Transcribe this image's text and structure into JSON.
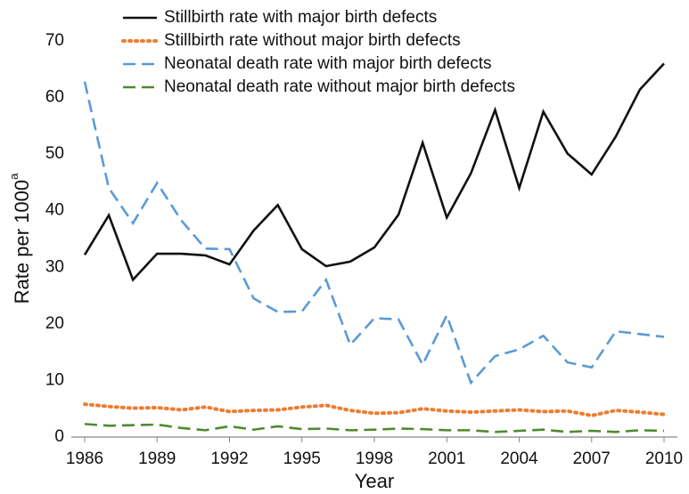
{
  "chart_data": {
    "type": "line",
    "xlabel": "Year",
    "ylabel": "Rate per 1000",
    "ylabel_superscript": "a",
    "x": [
      1986,
      1987,
      1988,
      1989,
      1990,
      1991,
      1992,
      1993,
      1994,
      1995,
      1996,
      1997,
      1998,
      1999,
      2000,
      2001,
      2002,
      2003,
      2004,
      2005,
      2006,
      2007,
      2008,
      2009,
      2010
    ],
    "xlim": [
      1986,
      2010
    ],
    "xticks": [
      1986,
      1989,
      1992,
      1995,
      1998,
      2001,
      2004,
      2007,
      2010
    ],
    "ylim": [
      0,
      70
    ],
    "yticks": [
      0,
      10,
      20,
      30,
      40,
      50,
      60,
      70
    ],
    "grid": false,
    "legend": "top",
    "series": [
      {
        "name": "Stillbirth rate with major birth defects",
        "color": "#111111",
        "style": "solid",
        "values": [
          32.2,
          39.2,
          27.8,
          32.4,
          32.4,
          32.1,
          30.5,
          36.5,
          41,
          33.2,
          30.2,
          31,
          33.5,
          39.3,
          52,
          38.8,
          46.6,
          57.8,
          44,
          57.5,
          50.1,
          46.4,
          53.1,
          61.4,
          66
        ]
      },
      {
        "name": "Stillbirth rate without major birth defects",
        "color": "#ed7d31",
        "style": "dotted",
        "values": [
          5.8,
          5.4,
          5.1,
          5.2,
          4.8,
          5.3,
          4.5,
          4.7,
          4.8,
          5.3,
          5.6,
          4.7,
          4.2,
          4.3,
          5,
          4.6,
          4.4,
          4.6,
          4.8,
          4.5,
          4.6,
          3.8,
          4.7,
          4.4,
          4
        ]
      },
      {
        "name": "Neonatal death rate with major birth defects",
        "color": "#5b9bd5",
        "style": "dashed",
        "values": [
          62.8,
          44,
          37.8,
          44.9,
          38.3,
          33.3,
          33.2,
          24.5,
          22.1,
          22.2,
          27.8,
          16.3,
          21,
          20.8,
          12.8,
          21.5,
          9.6,
          14.3,
          15.5,
          17.9,
          13.2,
          12.3,
          18.7,
          18.2,
          17.7
        ]
      },
      {
        "name": "Neonatal death rate without major birth defects",
        "color": "#4e8a2e",
        "style": "dashed",
        "values": [
          2.3,
          2,
          2.1,
          2.2,
          1.6,
          1.2,
          1.9,
          1.3,
          1.9,
          1.4,
          1.5,
          1.2,
          1.3,
          1.5,
          1.4,
          1.2,
          1.2,
          0.9,
          1.1,
          1.3,
          0.9,
          1.1,
          0.9,
          1.2,
          1.1
        ]
      }
    ]
  }
}
